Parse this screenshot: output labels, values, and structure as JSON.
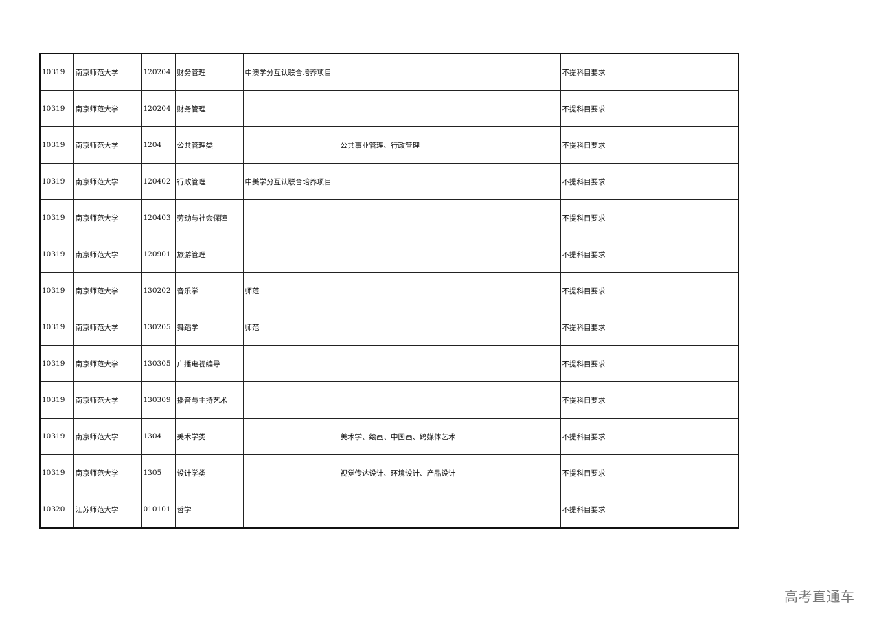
{
  "table": {
    "rows": [
      [
        "10319",
        "南京师范大学",
        "120204",
        "财务管理",
        "中澳学分互认联合培养项目",
        "",
        "不提科目要求"
      ],
      [
        "10319",
        "南京师范大学",
        "120204",
        "财务管理",
        "",
        "",
        "不提科目要求"
      ],
      [
        "10319",
        "南京师范大学",
        "1204",
        "公共管理类",
        "",
        "公共事业管理、行政管理",
        "不提科目要求"
      ],
      [
        "10319",
        "南京师范大学",
        "120402",
        "行政管理",
        "中美学分互认联合培养项目",
        "",
        "不提科目要求"
      ],
      [
        "10319",
        "南京师范大学",
        "120403",
        "劳动与社会保障",
        "",
        "",
        "不提科目要求"
      ],
      [
        "10319",
        "南京师范大学",
        "120901",
        "旅游管理",
        "",
        "",
        "不提科目要求"
      ],
      [
        "10319",
        "南京师范大学",
        "130202",
        "音乐学",
        "师范",
        "",
        "不提科目要求"
      ],
      [
        "10319",
        "南京师范大学",
        "130205",
        "舞蹈学",
        "师范",
        "",
        "不提科目要求"
      ],
      [
        "10319",
        "南京师范大学",
        "130305",
        "广播电视编导",
        "",
        "",
        "不提科目要求"
      ],
      [
        "10319",
        "南京师范大学",
        "130309",
        "播音与主持艺术",
        "",
        "",
        "不提科目要求"
      ],
      [
        "10319",
        "南京师范大学",
        "1304",
        "美术学类",
        "",
        "美术学、绘画、中国画、跨媒体艺术",
        "不提科目要求"
      ],
      [
        "10319",
        "南京师范大学",
        "1305",
        "设计学类",
        "",
        "视觉传达设计、环境设计、产品设计",
        "不提科目要求"
      ],
      [
        "10320",
        "江苏师范大学",
        "010101",
        "哲学",
        "",
        "",
        "不提科目要求"
      ]
    ]
  },
  "watermark": "高考直通车"
}
